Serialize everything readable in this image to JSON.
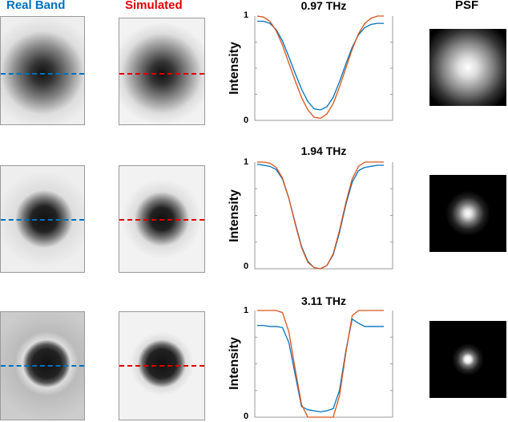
{
  "headers": {
    "real": "Real Band",
    "simulated": "Simulated",
    "psf": "PSF"
  },
  "colors": {
    "real": "#0072BD",
    "simulated": "#D95319",
    "real_header": "#0070C0",
    "simulated_header": "#E00000"
  },
  "chart_data": [
    {
      "type": "line",
      "title": "0.97 THz",
      "ylabel": "Intensity",
      "yticks": [
        "0",
        "1"
      ],
      "ylim": [
        0,
        1
      ],
      "x": [
        0,
        1,
        2,
        3,
        4,
        5,
        6,
        7,
        8,
        9,
        10,
        11,
        12,
        13,
        14,
        15,
        16,
        17,
        18,
        19,
        20
      ],
      "series": [
        {
          "values": [
            0.95,
            0.95,
            0.93,
            0.87,
            0.76,
            0.61,
            0.45,
            0.3,
            0.18,
            0.11,
            0.1,
            0.13,
            0.22,
            0.37,
            0.54,
            0.7,
            0.82,
            0.89,
            0.92,
            0.93,
            0.93
          ]
        },
        {
          "values": [
            1,
            0.99,
            0.95,
            0.86,
            0.72,
            0.55,
            0.38,
            0.22,
            0.1,
            0.03,
            0.02,
            0.06,
            0.16,
            0.32,
            0.5,
            0.68,
            0.83,
            0.93,
            0.98,
            1,
            1
          ]
        }
      ]
    },
    {
      "type": "line",
      "title": "1.94 THz",
      "ylabel": "Intensity",
      "yticks": [
        "0",
        "1"
      ],
      "ylim": [
        0,
        1
      ],
      "x": [
        0,
        1,
        2,
        3,
        4,
        5,
        6,
        7,
        8,
        9,
        10,
        11,
        12,
        13,
        14,
        15,
        16,
        17,
        18,
        19,
        20
      ],
      "series": [
        {
          "values": [
            0.98,
            0.97,
            0.96,
            0.93,
            0.84,
            0.66,
            0.43,
            0.21,
            0.07,
            0.01,
            0,
            0.03,
            0.13,
            0.34,
            0.6,
            0.81,
            0.92,
            0.95,
            0.96,
            0.97,
            0.97
          ]
        },
        {
          "values": [
            1,
            1,
            0.99,
            0.95,
            0.85,
            0.66,
            0.42,
            0.2,
            0.06,
            0.01,
            0,
            0.03,
            0.14,
            0.36,
            0.62,
            0.84,
            0.96,
            1,
            1,
            1,
            1
          ]
        }
      ]
    },
    {
      "type": "line",
      "title": "3.11 THz",
      "ylabel": "Intensity",
      "yticks": [
        "0",
        "1"
      ],
      "ylim": [
        0,
        1
      ],
      "x": [
        0,
        1,
        2,
        3,
        4,
        5,
        6,
        7,
        8,
        9,
        10,
        11,
        12,
        13,
        14,
        15,
        16,
        17,
        18,
        19,
        20
      ],
      "series": [
        {
          "values": [
            0.86,
            0.86,
            0.85,
            0.85,
            0.84,
            0.7,
            0.4,
            0.1,
            0.07,
            0.06,
            0.05,
            0.06,
            0.08,
            0.25,
            0.62,
            0.92,
            0.88,
            0.85,
            0.85,
            0.85,
            0.85
          ]
        },
        {
          "values": [
            1,
            1,
            1,
            1,
            0.98,
            0.8,
            0.45,
            0.12,
            0,
            0,
            0,
            0,
            0,
            0.2,
            0.6,
            0.95,
            1,
            1,
            1,
            1,
            1
          ]
        }
      ]
    }
  ]
}
